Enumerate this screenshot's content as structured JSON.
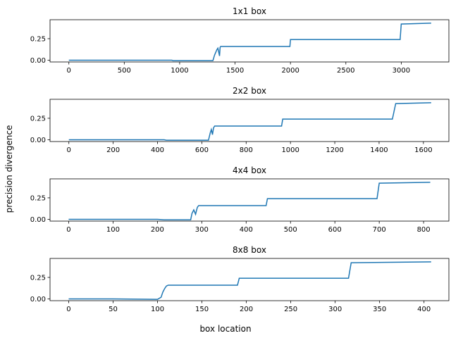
{
  "figure": {
    "ylabel": "precision divergence",
    "xlabel": "box location",
    "line_color": "#1f77b4"
  },
  "chart_data": [
    {
      "type": "line",
      "title": "1x1 box",
      "xlim": [
        -170,
        3430
      ],
      "ylim": [
        -0.02,
        0.47
      ],
      "xticks": [
        0,
        500,
        1000,
        1500,
        2000,
        2500,
        3000
      ],
      "yticks": [
        0.0,
        0.25
      ],
      "ytick_labels": [
        "0.00",
        "0.25"
      ],
      "grid": false,
      "x": [
        0,
        600,
        930,
        940,
        1300,
        1315,
        1325,
        1335,
        1345,
        1360,
        1365,
        1370,
        1380,
        1600,
        1995,
        2000,
        2990,
        3000,
        3270
      ],
      "y": [
        0.0,
        0.0,
        0.0,
        -0.005,
        -0.005,
        0.06,
        0.09,
        0.12,
        0.14,
        0.05,
        0.15,
        0.16,
        0.16,
        0.16,
        0.16,
        0.24,
        0.24,
        0.42,
        0.43
      ]
    },
    {
      "type": "line",
      "title": "2x2 box",
      "xlim": [
        -85,
        1715
      ],
      "ylim": [
        -0.02,
        0.47
      ],
      "xticks": [
        0,
        200,
        400,
        600,
        800,
        1000,
        1200,
        1400,
        1600
      ],
      "yticks": [
        0.0,
        0.25
      ],
      "ytick_labels": [
        "0.00",
        "0.25"
      ],
      "grid": false,
      "x": [
        0,
        430,
        440,
        630,
        638,
        643,
        648,
        653,
        658,
        700,
        960,
        965,
        1460,
        1475,
        1635
      ],
      "y": [
        0.0,
        0.0,
        -0.005,
        -0.005,
        0.08,
        0.12,
        0.06,
        0.14,
        0.16,
        0.16,
        0.16,
        0.24,
        0.24,
        0.42,
        0.43
      ]
    },
    {
      "type": "line",
      "title": "4x4 box",
      "xlim": [
        -42,
        857
      ],
      "ylim": [
        -0.02,
        0.47
      ],
      "xticks": [
        0,
        100,
        200,
        300,
        400,
        500,
        600,
        700,
        800
      ],
      "yticks": [
        0.0,
        0.25
      ],
      "ytick_labels": [
        "0.00",
        "0.25"
      ],
      "grid": false,
      "x": [
        0,
        200,
        215,
        275,
        278,
        282,
        286,
        290,
        293,
        300,
        445,
        448,
        695,
        700,
        815
      ],
      "y": [
        0.0,
        0.0,
        -0.005,
        -0.005,
        0.07,
        0.11,
        0.06,
        0.14,
        0.16,
        0.16,
        0.16,
        0.24,
        0.24,
        0.42,
        0.43
      ]
    },
    {
      "type": "line",
      "title": "8x8 box",
      "xlim": [
        -21,
        428
      ],
      "ylim": [
        -0.02,
        0.47
      ],
      "xticks": [
        0,
        50,
        100,
        150,
        200,
        250,
        300,
        350,
        400
      ],
      "yticks": [
        0.0,
        0.25
      ],
      "ytick_labels": [
        "0.00",
        "0.25"
      ],
      "grid": false,
      "x": [
        0,
        50,
        100,
        104,
        106,
        108,
        110,
        112,
        150,
        190,
        192,
        315,
        318,
        408
      ],
      "y": [
        0.0,
        0.0,
        -0.005,
        0.02,
        0.08,
        0.12,
        0.15,
        0.16,
        0.16,
        0.16,
        0.24,
        0.24,
        0.42,
        0.43
      ]
    }
  ]
}
